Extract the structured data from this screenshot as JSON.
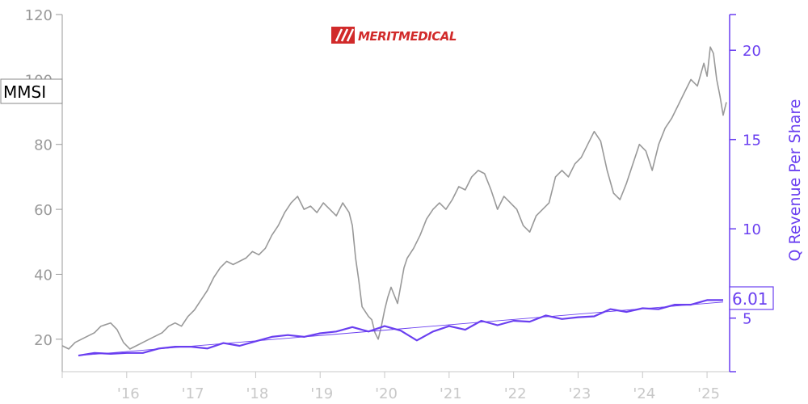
{
  "logo": {
    "text": "MERITMEDICAL"
  },
  "colors": {
    "price": "#999999",
    "revenue": "#6a3ff0",
    "axis_left": "#9a9a9a",
    "axis_bottom": "#c8c8c8",
    "logo": "#d12a2a"
  },
  "chart_data": {
    "type": "line",
    "ticker": "MMSI",
    "ylabel_right": "Q Revenue Per Share",
    "last_value_label": "6.01",
    "x_ticks": [
      "'16",
      "'17",
      "'18",
      "'19",
      "'20",
      "'21",
      "'22",
      "'23",
      "'24",
      "'25"
    ],
    "y_left_ticks": [
      "20",
      "40",
      "60",
      "80",
      "100",
      "120"
    ],
    "y_right_ticks": [
      "5",
      "10",
      "15",
      "20"
    ],
    "y_left_range": [
      10,
      120
    ],
    "y_right_range": [
      2,
      22
    ],
    "x_range": [
      2015.0,
      2025.35
    ],
    "series": [
      {
        "axis": "left",
        "x": [
          2015.0,
          2015.1,
          2015.2,
          2015.3,
          2015.4,
          2015.5,
          2015.6,
          2015.75,
          2015.85,
          2015.95,
          2016.0,
          2016.05,
          2016.15,
          2016.25,
          2016.35,
          2016.45,
          2016.55,
          2016.65,
          2016.75,
          2016.85,
          2016.95,
          2017.05,
          2017.15,
          2017.25,
          2017.35,
          2017.45,
          2017.55,
          2017.65,
          2017.75,
          2017.85,
          2017.95,
          2018.05,
          2018.15,
          2018.25,
          2018.35,
          2018.45,
          2018.55,
          2018.65,
          2018.75,
          2018.85,
          2018.95,
          2019.05,
          2019.15,
          2019.25,
          2019.35,
          2019.45,
          2019.5,
          2019.55,
          2019.6,
          2019.65,
          2019.75,
          2019.8,
          2019.85,
          2019.9,
          2019.95,
          2020.0,
          2020.05,
          2020.1,
          2020.2,
          2020.3,
          2020.35,
          2020.45,
          2020.55,
          2020.65,
          2020.75,
          2020.85,
          2020.95,
          2021.05,
          2021.15,
          2021.25,
          2021.35,
          2021.45,
          2021.55,
          2021.65,
          2021.75,
          2021.85,
          2021.95,
          2022.05,
          2022.15,
          2022.25,
          2022.35,
          2022.45,
          2022.55,
          2022.65,
          2022.75,
          2022.85,
          2022.95,
          2023.05,
          2023.15,
          2023.25,
          2023.35,
          2023.45,
          2023.55,
          2023.65,
          2023.75,
          2023.85,
          2023.95,
          2024.05,
          2024.15,
          2024.25,
          2024.35,
          2024.45,
          2024.55,
          2024.65,
          2024.75,
          2024.85,
          2024.95,
          2025.0,
          2025.05,
          2025.1,
          2025.15,
          2025.2,
          2025.25,
          2025.3
        ],
        "y": [
          18,
          17,
          19,
          20,
          21,
          22,
          24,
          25,
          23,
          19,
          18,
          17,
          18,
          19,
          20,
          21,
          22,
          24,
          25,
          24,
          27,
          29,
          32,
          35,
          39,
          42,
          44,
          43,
          44,
          45,
          47,
          46,
          48,
          52,
          55,
          59,
          62,
          64,
          60,
          61,
          59,
          62,
          60,
          58,
          62,
          59,
          55,
          45,
          38,
          30,
          27,
          26,
          22,
          20,
          24,
          29,
          33,
          36,
          31,
          42,
          45,
          48,
          52,
          57,
          60,
          62,
          60,
          63,
          67,
          66,
          70,
          72,
          71,
          66,
          60,
          64,
          62,
          60,
          55,
          53,
          58,
          60,
          62,
          70,
          72,
          70,
          74,
          76,
          80,
          84,
          81,
          72,
          65,
          63,
          68,
          74,
          80,
          78,
          72,
          80,
          85,
          88,
          92,
          96,
          100,
          98,
          105,
          101,
          110,
          108,
          100,
          95,
          89,
          93
        ]
      },
      {
        "axis": "right",
        "x": [
          2015.25,
          2015.5,
          2015.75,
          2016.0,
          2016.25,
          2016.5,
          2016.75,
          2017.0,
          2017.25,
          2017.5,
          2017.75,
          2018.0,
          2018.25,
          2018.5,
          2018.75,
          2019.0,
          2019.25,
          2019.5,
          2019.75,
          2020.0,
          2020.25,
          2020.5,
          2020.75,
          2021.0,
          2021.25,
          2021.5,
          2021.75,
          2022.0,
          2022.25,
          2022.5,
          2022.75,
          2023.0,
          2023.25,
          2023.5,
          2023.75,
          2024.0,
          2024.25,
          2024.5,
          2024.75,
          2025.0,
          2025.25
        ],
        "y": [
          2.9,
          3.05,
          3.0,
          3.05,
          3.05,
          3.3,
          3.4,
          3.4,
          3.3,
          3.6,
          3.45,
          3.7,
          3.95,
          4.05,
          3.95,
          4.15,
          4.25,
          4.5,
          4.25,
          4.55,
          4.3,
          3.75,
          4.25,
          4.55,
          4.35,
          4.85,
          4.6,
          4.85,
          4.8,
          5.15,
          4.95,
          5.05,
          5.1,
          5.5,
          5.35,
          5.55,
          5.5,
          5.75,
          5.75,
          6.01,
          6.01
        ]
      },
      {
        "axis": "right",
        "x": [
          2015.25,
          2025.25
        ],
        "y": [
          2.9,
          5.9
        ]
      }
    ]
  }
}
